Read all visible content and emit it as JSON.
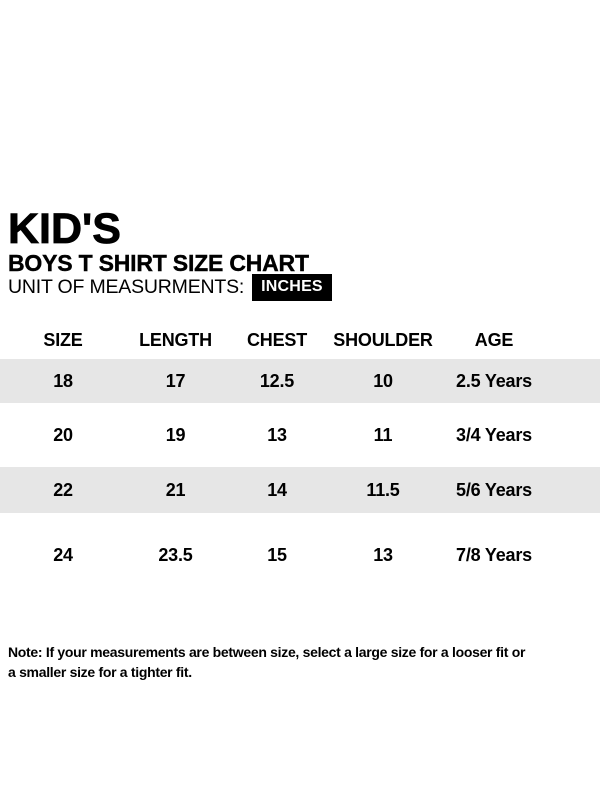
{
  "header": {
    "title": "KID'S",
    "subtitle": "BOYS T SHIRT SIZE CHART",
    "unit_label": "UNIT OF MEASURMENTS:",
    "unit_value": "INCHES"
  },
  "table": {
    "columns": [
      "SIZE",
      "LENGTH",
      "CHEST",
      "SHOULDER",
      "AGE"
    ],
    "rows": [
      [
        "18",
        "17",
        "12.5",
        "10",
        "2.5 Years"
      ],
      [
        "20",
        "19",
        "13",
        "11",
        "3/4 Years"
      ],
      [
        "22",
        "21",
        "14",
        "11.5",
        "5/6 Years"
      ],
      [
        "24",
        "23.5",
        "15",
        "13",
        "7/8 Years"
      ]
    ]
  },
  "note": {
    "line1": "Note: If your measurements are between size, select a large size for a looser fit or",
    "line2": "a smaller size for a tighter fit."
  },
  "colors": {
    "stripe": "#e6e6e6",
    "chip_background": "#000000",
    "chip_text": "#ffffff",
    "text": "#000000"
  }
}
